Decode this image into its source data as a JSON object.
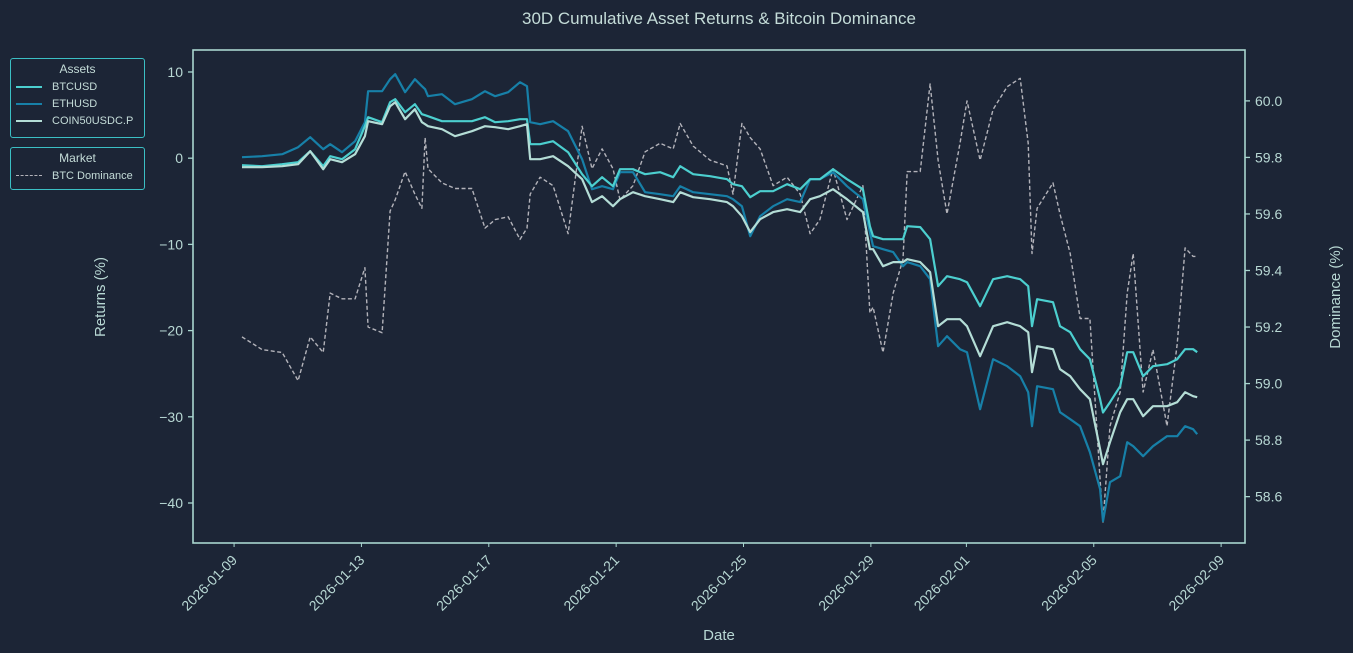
{
  "chart_data": {
    "type": "line",
    "title": "30D Cumulative Asset Returns & Bitcoin Dominance",
    "xlabel": "Date",
    "ylabel": "Returns (%)",
    "y2label": "Dominance (%)",
    "x_origin": "2026-01-09",
    "xlim_days": [
      -1.29,
      31.75
    ],
    "ylim": [
      -44.64,
      12.55
    ],
    "y2lim": [
      58.436,
      60.18
    ],
    "grid": false,
    "x_ticks": [
      {
        "label": "2026-01-09",
        "day": 0
      },
      {
        "label": "2026-01-13",
        "day": 4
      },
      {
        "label": "2026-01-17",
        "day": 8
      },
      {
        "label": "2026-01-21",
        "day": 12
      },
      {
        "label": "2026-01-25",
        "day": 16
      },
      {
        "label": "2026-01-29",
        "day": 20
      },
      {
        "label": "2026-02-01",
        "day": 23
      },
      {
        "label": "2026-02-05",
        "day": 27
      },
      {
        "label": "2026-02-09",
        "day": 31
      }
    ],
    "y_ticks": [
      "10",
      "0",
      "−10",
      "−20",
      "−30",
      "−40"
    ],
    "y_tick_values": [
      10,
      0,
      -10,
      -20,
      -30,
      -40
    ],
    "y2_ticks": [
      "60.0",
      "59.8",
      "59.6",
      "59.4",
      "59.2",
      "59.0",
      "58.8",
      "58.6"
    ],
    "y2_tick_values": [
      60.0,
      59.8,
      59.6,
      59.4,
      59.2,
      59.0,
      58.8,
      58.6
    ],
    "x_days": [
      0.25,
      0.88,
      1.51,
      2.01,
      2.39,
      2.8,
      3.02,
      3.39,
      3.8,
      4.11,
      4.21,
      4.65,
      4.9,
      5.06,
      5.37,
      5.68,
      5.9,
      6.0,
      6.09,
      6.53,
      6.94,
      7.47,
      7.88,
      8.2,
      8.61,
      8.98,
      9.2,
      9.3,
      9.61,
      10.02,
      10.49,
      10.93,
      11.24,
      11.56,
      11.9,
      12.12,
      12.53,
      12.91,
      13.38,
      13.79,
      14.01,
      14.42,
      14.95,
      15.48,
      15.67,
      15.95,
      16.21,
      16.52,
      16.93,
      17.37,
      17.78,
      18.09,
      18.4,
      18.81,
      19.25,
      19.75,
      19.97,
      20.07,
      20.38,
      20.7,
      21.01,
      21.14,
      21.55,
      21.86,
      22.11,
      22.39,
      22.8,
      23.02,
      23.43,
      23.84,
      24.28,
      24.69,
      24.94,
      25.06,
      25.22,
      25.72,
      25.94,
      26.26,
      26.57,
      26.88,
      27.2,
      27.29,
      27.51,
      27.83,
      28.05,
      28.24,
      28.55,
      28.86,
      29.3,
      29.62,
      29.87,
      30.12,
      30.25
    ],
    "series": [
      {
        "name": "BTCUSD",
        "axis": "left",
        "color": "#4ccfcf",
        "style": "solid",
        "values": [
          -0.81,
          -0.93,
          -0.7,
          -0.46,
          0.81,
          -0.93,
          0.23,
          -0.12,
          1.04,
          3.71,
          4.76,
          4.18,
          6.5,
          6.84,
          5.34,
          6.26,
          5.1,
          4.99,
          4.87,
          4.29,
          4.29,
          4.29,
          4.76,
          4.18,
          4.29,
          4.52,
          4.52,
          1.62,
          1.62,
          1.97,
          0.7,
          -1.86,
          -3.25,
          -2.2,
          -3.25,
          -1.28,
          -1.28,
          -1.86,
          -1.62,
          -2.2,
          -0.93,
          -1.86,
          -2.09,
          -2.44,
          -3.02,
          -3.25,
          -4.52,
          -3.83,
          -3.83,
          -3.02,
          -3.6,
          -2.44,
          -2.44,
          -1.28,
          -2.44,
          -3.6,
          -7.89,
          -9.05,
          -9.4,
          -9.4,
          -9.4,
          -7.89,
          -8.0,
          -9.4,
          -14.85,
          -13.69,
          -14.04,
          -14.39,
          -17.17,
          -14.04,
          -13.69,
          -14.04,
          -14.85,
          -19.49,
          -16.36,
          -16.71,
          -19.49,
          -20.19,
          -22.16,
          -23.32,
          -27.96,
          -29.5,
          -28.31,
          -26.45,
          -22.51,
          -22.51,
          -25.29,
          -24.13,
          -23.9,
          -23.32,
          -22.16,
          -22.16,
          -22.51
        ]
      },
      {
        "name": "ETHUSD",
        "axis": "left",
        "color": "#1780a8",
        "style": "solid",
        "values": [
          0.12,
          0.23,
          0.46,
          1.28,
          2.44,
          1.04,
          1.62,
          0.7,
          1.97,
          4.18,
          7.77,
          7.77,
          9.16,
          9.74,
          7.66,
          9.16,
          8.35,
          8.0,
          7.19,
          7.42,
          6.26,
          6.84,
          7.77,
          7.19,
          7.66,
          8.82,
          8.35,
          4.18,
          3.94,
          4.29,
          3.13,
          -0.12,
          -3.6,
          -3.25,
          -3.6,
          -1.62,
          -1.62,
          -3.94,
          -4.18,
          -4.41,
          -3.25,
          -3.94,
          -4.18,
          -4.41,
          -4.76,
          -5.57,
          -9.05,
          -6.73,
          -5.57,
          -4.76,
          -5.1,
          -2.44,
          -2.44,
          -1.62,
          -3.25,
          -4.76,
          -8.58,
          -10.21,
          -10.56,
          -10.9,
          -12.53,
          -12.06,
          -12.53,
          -14.04,
          -21.81,
          -20.65,
          -22.16,
          -22.51,
          -29.12,
          -23.32,
          -24.13,
          -25.29,
          -27.15,
          -31.09,
          -26.45,
          -26.8,
          -29.47,
          -30.28,
          -31.09,
          -34.11,
          -38.4,
          -42.11,
          -37.59,
          -36.89,
          -32.95,
          -33.41,
          -34.57,
          -33.41,
          -32.25,
          -32.25,
          -31.09,
          -31.44,
          -32.02
        ]
      },
      {
        "name": "COIN50USDC.P",
        "axis": "left",
        "color": "#b4ddd6",
        "style": "solid",
        "values": [
          -1.04,
          -1.04,
          -0.93,
          -0.7,
          0.81,
          -1.28,
          -0.12,
          -0.46,
          0.46,
          2.55,
          4.29,
          3.94,
          6.03,
          6.5,
          4.52,
          5.68,
          4.18,
          3.94,
          3.71,
          3.36,
          2.55,
          3.13,
          3.71,
          3.6,
          3.36,
          3.71,
          3.94,
          -0.12,
          -0.12,
          0.23,
          -0.93,
          -2.44,
          -5.1,
          -4.41,
          -5.57,
          -4.76,
          -3.94,
          -4.41,
          -4.76,
          -5.1,
          -3.94,
          -4.52,
          -4.76,
          -5.1,
          -5.57,
          -6.73,
          -8.58,
          -7.08,
          -6.26,
          -5.92,
          -6.26,
          -4.76,
          -4.41,
          -3.6,
          -4.76,
          -6.26,
          -10.56,
          -10.56,
          -12.53,
          -12.06,
          -12.06,
          -11.72,
          -12.06,
          -13.23,
          -19.49,
          -18.68,
          -18.68,
          -19.49,
          -22.97,
          -19.49,
          -19.03,
          -19.49,
          -20.19,
          -24.83,
          -21.81,
          -22.16,
          -24.48,
          -25.29,
          -26.8,
          -27.96,
          -33.76,
          -35.5,
          -32.95,
          -29.47,
          -27.96,
          -27.96,
          -29.93,
          -28.77,
          -28.77,
          -28.31,
          -27.15,
          -27.61,
          -27.73
        ]
      },
      {
        "name": "BTC Dominance",
        "axis": "right",
        "color": "#b3b3ba",
        "style": "dashed",
        "values": [
          59.165,
          59.12,
          59.11,
          59.01,
          59.165,
          59.11,
          59.32,
          59.3,
          59.3,
          59.41,
          59.2,
          59.18,
          59.61,
          59.65,
          59.75,
          59.67,
          59.62,
          59.87,
          59.76,
          59.71,
          59.69,
          59.69,
          59.55,
          59.58,
          59.59,
          59.51,
          59.55,
          59.67,
          59.73,
          59.7,
          59.53,
          59.91,
          59.76,
          59.83,
          59.76,
          59.65,
          59.7,
          59.82,
          59.85,
          59.83,
          59.92,
          59.84,
          59.79,
          59.77,
          59.67,
          59.92,
          59.87,
          59.83,
          59.7,
          59.73,
          59.67,
          59.53,
          59.58,
          59.76,
          59.58,
          59.7,
          59.25,
          59.27,
          59.11,
          59.32,
          59.44,
          59.75,
          59.75,
          60.06,
          59.79,
          59.6,
          59.85,
          60.0,
          59.79,
          59.97,
          60.05,
          60.08,
          59.85,
          59.46,
          59.62,
          59.71,
          59.6,
          59.46,
          59.23,
          59.23,
          58.66,
          58.51,
          58.85,
          58.97,
          59.32,
          59.46,
          58.97,
          59.12,
          58.85,
          59.14,
          59.48,
          59.45,
          59.45
        ]
      }
    ]
  },
  "legend": {
    "assets_title": "Assets",
    "assets": [
      "BTCUSD",
      "ETHUSD",
      "COIN50USDC.P"
    ],
    "market_title": "Market",
    "market": [
      "BTC Dominance"
    ]
  }
}
